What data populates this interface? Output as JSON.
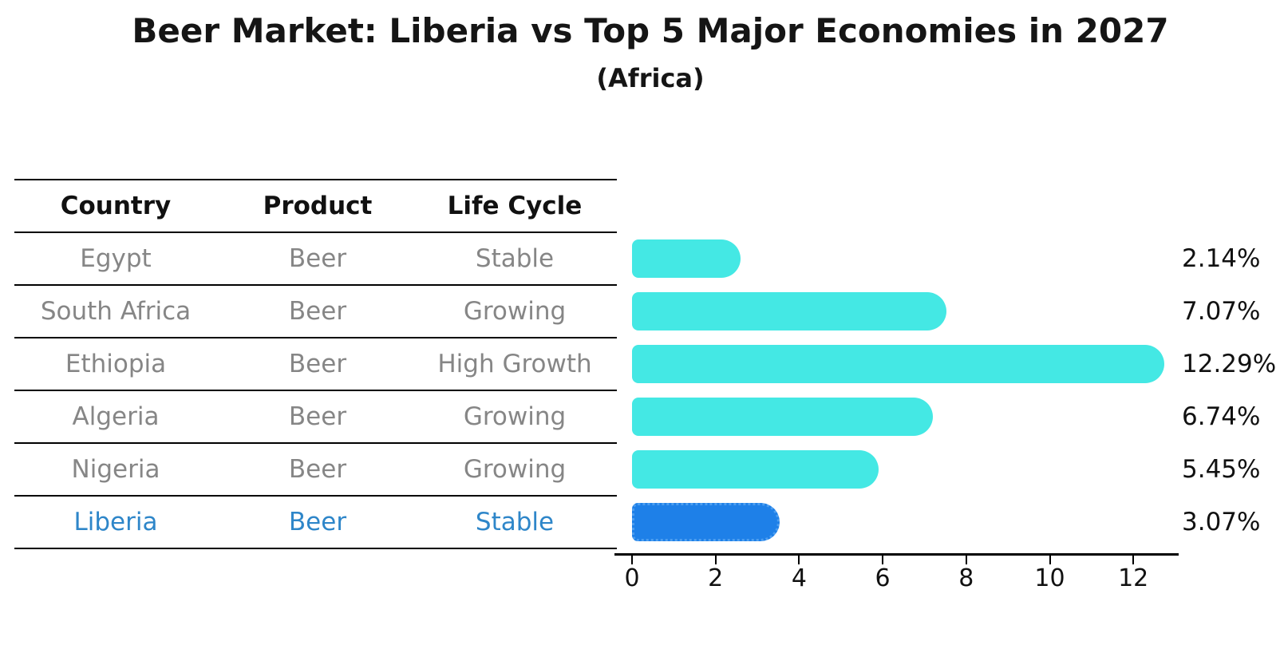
{
  "title": "Beer Market: Liberia vs Top 5 Major Economies in 2027",
  "subtitle": "(Africa)",
  "table": {
    "headers": [
      "Country",
      "Product",
      "Life Cycle"
    ],
    "rows": [
      {
        "country": "Egypt",
        "product": "Beer",
        "life_cycle": "Stable",
        "highlight": false
      },
      {
        "country": "South Africa",
        "product": "Beer",
        "life_cycle": "Growing",
        "highlight": false
      },
      {
        "country": "Ethiopia",
        "product": "Beer",
        "life_cycle": "High Growth",
        "highlight": false
      },
      {
        "country": "Algeria",
        "product": "Beer",
        "life_cycle": "Growing",
        "highlight": false
      },
      {
        "country": "Nigeria",
        "product": "Beer",
        "life_cycle": "Growing",
        "highlight": false
      },
      {
        "country": "Liberia",
        "product": "Beer",
        "life_cycle": "Stable",
        "highlight": true
      }
    ]
  },
  "chart_data": {
    "type": "bar",
    "orientation": "horizontal",
    "title": "Beer Market: Liberia vs Top 5 Major Economies in 2027",
    "subtitle": "(Africa)",
    "categories": [
      "Egypt",
      "South Africa",
      "Ethiopia",
      "Algeria",
      "Nigeria",
      "Liberia"
    ],
    "values": [
      2.14,
      7.07,
      12.29,
      6.74,
      5.45,
      3.07
    ],
    "value_labels": [
      "2.14%",
      "7.07%",
      "12.29%",
      "6.74%",
      "5.45%",
      "3.07%"
    ],
    "x_tick_labels": [
      "0",
      "2",
      "4",
      "6",
      "8",
      "10",
      "12"
    ],
    "x_ticks": [
      0,
      2,
      4,
      6,
      8,
      10,
      12
    ],
    "xlim": [
      0,
      13
    ],
    "grid": false,
    "legend": false,
    "bar_color": "#44e8e4",
    "highlight_color": "#1e80e8",
    "highlight_index": 5,
    "highlight_style": "dotted-outline"
  },
  "colors": {
    "background": "#ffffff",
    "text_primary": "#151515",
    "text_muted": "#868686",
    "highlight_text": "#2e86c9",
    "bar": "#44e8e4",
    "highlight_bar": "#1e80e8",
    "axis": "#000000"
  }
}
